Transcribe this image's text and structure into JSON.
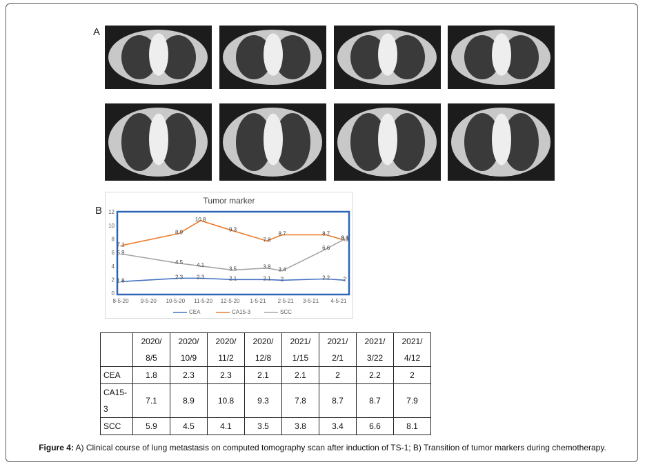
{
  "panel_labels": {
    "a": "A",
    "b": "B"
  },
  "chart_data": {
    "type": "line",
    "title": "Tumor marker",
    "x": [
      "2020-08-05",
      "2020-10-09",
      "2020-11-02",
      "2020-12-08",
      "2021-01-15",
      "2021-02-01",
      "2021-03-22",
      "2021-04-12"
    ],
    "xlim": [
      "2020-08-05",
      "2021-04-12"
    ],
    "xticks": [
      {
        "value": "2020-08-05",
        "label": "8-5-20"
      },
      {
        "value": "2020-09-05",
        "label": "9-5-20"
      },
      {
        "value": "2020-10-05",
        "label": "10-5-20"
      },
      {
        "value": "2020-11-05",
        "label": "11-5-20"
      },
      {
        "value": "2020-12-05",
        "label": "12-5-20"
      },
      {
        "value": "2021-01-05",
        "label": "1-5-21"
      },
      {
        "value": "2021-02-05",
        "label": "2-5-21"
      },
      {
        "value": "2021-03-05",
        "label": "3-5-21"
      },
      {
        "value": "2021-04-05",
        "label": "4-5-21"
      }
    ],
    "ylim": [
      0,
      12
    ],
    "yticks": [
      0,
      2,
      4,
      6,
      8,
      10,
      12
    ],
    "legend": "bottom",
    "series": [
      {
        "name": "CEA",
        "color": "#4472c4",
        "values": [
          1.8,
          2.3,
          2.3,
          2.1,
          2.1,
          2,
          2.2,
          2
        ]
      },
      {
        "name": "CA15-3",
        "color": "#ed7d31",
        "values": [
          7.1,
          8.9,
          10.8,
          9.3,
          7.8,
          8.7,
          8.7,
          7.9
        ]
      },
      {
        "name": "SCC",
        "color": "#a5a5a5",
        "values": [
          5.9,
          4.5,
          4.1,
          3.5,
          3.8,
          3.4,
          6.6,
          8.1
        ]
      }
    ]
  },
  "table": {
    "header": [
      [
        "2020/",
        "8/5"
      ],
      [
        "2020/",
        "10/9"
      ],
      [
        "2020/",
        "11/2"
      ],
      [
        "2020/",
        "12/8"
      ],
      [
        "2021/",
        "1/15"
      ],
      [
        "2021/",
        "2/1"
      ],
      [
        "2021/",
        "3/22"
      ],
      [
        "2021/",
        "4/12"
      ]
    ],
    "rows": [
      [
        "CEA",
        1.8,
        2.3,
        2.3,
        2.1,
        2.1,
        2,
        2.2,
        2
      ],
      [
        [
          "CA15-",
          "3"
        ],
        7.1,
        8.9,
        10.8,
        9.3,
        7.8,
        8.7,
        8.7,
        7.9
      ],
      [
        "SCC",
        5.9,
        4.5,
        4.1,
        3.5,
        3.8,
        3.4,
        6.6,
        8.1
      ]
    ]
  },
  "caption": {
    "label": "Figure 4:",
    "text": " A) Clinical course of lung metastasis on computed tomography scan after induction of TS-1; B) Transition of tumor markers during chemotherapy."
  }
}
